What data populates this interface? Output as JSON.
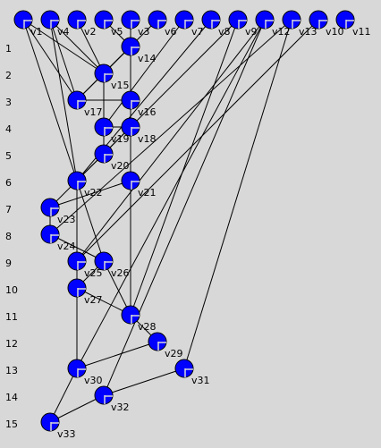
{
  "row_labels": [
    "1",
    "2",
    "3",
    "4",
    "5",
    "6",
    "7",
    "8",
    "9",
    "10",
    "11",
    "12",
    "13",
    "14",
    "15"
  ],
  "colors": {
    "background": "#d8d8d8",
    "node_fill": "#0000ff",
    "node_stroke": "#000000",
    "edge": "#000000"
  },
  "nodes": [
    {
      "id": "v1",
      "label": "v1"
    },
    {
      "id": "v4",
      "label": "v4"
    },
    {
      "id": "v2",
      "label": "v2"
    },
    {
      "id": "v5",
      "label": "v5"
    },
    {
      "id": "v3",
      "label": "v3"
    },
    {
      "id": "v6",
      "label": "v6"
    },
    {
      "id": "v7",
      "label": "v7"
    },
    {
      "id": "v8",
      "label": "v8"
    },
    {
      "id": "v9",
      "label": "v9"
    },
    {
      "id": "v12",
      "label": "v12"
    },
    {
      "id": "v13",
      "label": "v13"
    },
    {
      "id": "v10",
      "label": "v10"
    },
    {
      "id": "v11",
      "label": "v11"
    },
    {
      "id": "v14",
      "label": "v14"
    },
    {
      "id": "v15",
      "label": "v15"
    },
    {
      "id": "v17",
      "label": "v17"
    },
    {
      "id": "v16",
      "label": "v16"
    },
    {
      "id": "v19",
      "label": "v19"
    },
    {
      "id": "v18",
      "label": "v18"
    },
    {
      "id": "v20",
      "label": "v20"
    },
    {
      "id": "v22",
      "label": "v22"
    },
    {
      "id": "v21",
      "label": "v21"
    },
    {
      "id": "v23",
      "label": "v23"
    },
    {
      "id": "v24",
      "label": "v24"
    },
    {
      "id": "v25",
      "label": "v25"
    },
    {
      "id": "v26",
      "label": "v26"
    },
    {
      "id": "v27",
      "label": "v27"
    },
    {
      "id": "v28",
      "label": "v28"
    },
    {
      "id": "v29",
      "label": "v29"
    },
    {
      "id": "v30",
      "label": "v30"
    },
    {
      "id": "v31",
      "label": "v31"
    },
    {
      "id": "v32",
      "label": "v32"
    },
    {
      "id": "v33",
      "label": "v33"
    }
  ],
  "edges": [
    [
      "v1",
      "v17"
    ],
    [
      "v1",
      "v15"
    ],
    [
      "v1",
      "v22"
    ],
    [
      "v4",
      "v22"
    ],
    [
      "v4",
      "v15"
    ],
    [
      "v4",
      "v17"
    ],
    [
      "v2",
      "v15"
    ],
    [
      "v5",
      "v14"
    ],
    [
      "v3",
      "v14"
    ],
    [
      "v3",
      "v16"
    ],
    [
      "v14",
      "v15"
    ],
    [
      "v14",
      "v17"
    ],
    [
      "v17",
      "v16"
    ],
    [
      "v15",
      "v19"
    ],
    [
      "v6",
      "v17"
    ],
    [
      "v7",
      "v19"
    ],
    [
      "v8",
      "v22"
    ],
    [
      "v9",
      "v22"
    ],
    [
      "v9",
      "v28"
    ],
    [
      "v12",
      "v25"
    ],
    [
      "v12",
      "v30"
    ],
    [
      "v12",
      "v32"
    ],
    [
      "v13",
      "v24"
    ],
    [
      "v13",
      "v31"
    ],
    [
      "v10",
      "v25"
    ],
    [
      "v16",
      "v18"
    ],
    [
      "v16",
      "v21"
    ],
    [
      "v19",
      "v18"
    ],
    [
      "v19",
      "v20"
    ],
    [
      "v18",
      "v20"
    ],
    [
      "v20",
      "v22"
    ],
    [
      "v22",
      "v23"
    ],
    [
      "v22",
      "v26"
    ],
    [
      "v22",
      "v25"
    ],
    [
      "v21",
      "v23"
    ],
    [
      "v21",
      "v28"
    ],
    [
      "v23",
      "v24"
    ],
    [
      "v24",
      "v26"
    ],
    [
      "v25",
      "v27"
    ],
    [
      "v26",
      "v27"
    ],
    [
      "v26",
      "v28"
    ],
    [
      "v27",
      "v28"
    ],
    [
      "v27",
      "v30"
    ],
    [
      "v28",
      "v29"
    ],
    [
      "v29",
      "v30"
    ],
    [
      "v31",
      "v32"
    ],
    [
      "v30",
      "v33"
    ],
    [
      "v32",
      "v33"
    ]
  ]
}
